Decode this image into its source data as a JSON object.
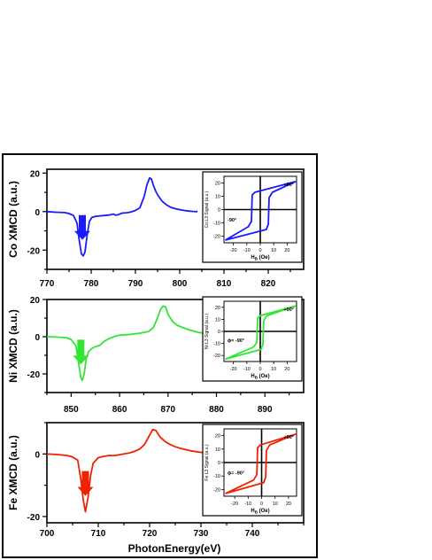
{
  "xlabel": "PhotonEnergy(eV)",
  "chart_data": [
    {
      "type": "line",
      "ylabel": "Co XMCD (a.u.)",
      "color": "#1a1aff",
      "xlim": [
        770,
        828
      ],
      "ylim": [
        -30,
        22
      ],
      "xticks": [
        770,
        780,
        790,
        800,
        810,
        820
      ],
      "yticks": [
        -20,
        0,
        20
      ],
      "series": [
        {
          "x": [
            770,
            772,
            774,
            775,
            776,
            776.8,
            777.3,
            777.8,
            778.2,
            778.6,
            779.1,
            779.6,
            780.2,
            781,
            782,
            783,
            784,
            785,
            785.6,
            786.2,
            787,
            788,
            789,
            790,
            791,
            792,
            792.6,
            793.2,
            793.6,
            794,
            794.6,
            795.2,
            796,
            797,
            798,
            799,
            800,
            801,
            802,
            803,
            804
          ],
          "y": [
            0,
            -0.3,
            -0.5,
            -1,
            -2,
            -6,
            -15,
            -22,
            -23,
            -21,
            -12,
            -5,
            -3,
            -2.5,
            -2.2,
            -2,
            -1.8,
            -1.3,
            -1.9,
            -1.5,
            -0.8,
            -0.6,
            -0.2,
            0.6,
            2,
            8,
            14,
            17.5,
            17,
            14,
            10.5,
            8,
            5.5,
            3.5,
            2.2,
            1.5,
            1,
            0.6,
            0.3,
            0.1,
            0
          ]
        }
      ],
      "arrow_x": 778,
      "inset": {
        "ylabel": "Co L3 Signal (a.u.)",
        "xlabel": "H",
        "xlabel_sub": "B",
        "xlabel_unit": "(Oe)",
        "xlim": [
          -27,
          27
        ],
        "ylim": [
          -25,
          25
        ],
        "xticks": [
          -20,
          -10,
          0,
          10,
          20
        ],
        "yticks": [
          -20,
          -10,
          0,
          10,
          20
        ],
        "label_pos": "+90°",
        "label_neg": "-90°",
        "coercive": 6,
        "sat": 19
      }
    },
    {
      "type": "line",
      "ylabel": "Ni XMCD (a.u.)",
      "color": "#33e633",
      "xlim": [
        845,
        898
      ],
      "ylim": [
        -30,
        20
      ],
      "xticks": [
        850,
        860,
        870,
        880,
        890
      ],
      "yticks": [
        -20,
        0,
        20
      ],
      "series": [
        {
          "x": [
            845,
            847,
            849,
            850,
            851,
            851.6,
            852,
            852.3,
            852.7,
            853.1,
            853.6,
            854.2,
            854.8,
            855.5,
            856,
            856.8,
            857.5,
            858,
            858.6,
            859.2,
            860,
            862,
            864,
            866,
            867,
            867.8,
            868.5,
            869,
            869.5,
            870,
            871,
            872,
            874,
            876,
            878,
            880
          ],
          "y": [
            0,
            -0.2,
            -0.5,
            -1.5,
            -5,
            -15,
            -22,
            -23.5,
            -20,
            -12,
            -8,
            -6.5,
            -5.5,
            -5,
            -4.5,
            -2.5,
            -1.5,
            -0.8,
            -0.3,
            0.4,
            0.8,
            1.2,
            1.8,
            2.8,
            5,
            10,
            15,
            16.5,
            16,
            12,
            8,
            6,
            4,
            2.5,
            1.5,
            1
          ]
        }
      ],
      "arrow_x": 852,
      "inset": {
        "ylabel": "Ni L3 Signal (a.u.)",
        "xlabel": "H",
        "xlabel_sub": "B",
        "xlabel_unit": "(Oe)",
        "xlim": [
          -27,
          27
        ],
        "ylim": [
          -25,
          25
        ],
        "xticks": [
          -20,
          -10,
          0,
          10,
          20
        ],
        "yticks": [
          -20,
          -10,
          0,
          10,
          20
        ],
        "label_pos": "+90°",
        "label_neg": "-90°",
        "phi": "ϕ",
        "coercive": 2,
        "sat": 19
      }
    },
    {
      "type": "line",
      "ylabel": "Fe XMCD (a.u.)",
      "color": "#ee2200",
      "xlim": [
        700,
        750
      ],
      "ylim": [
        -22,
        10
      ],
      "xticks": [
        700,
        710,
        720,
        730,
        740
      ],
      "yticks": [
        -20,
        0
      ],
      "series": [
        {
          "x": [
            700,
            702,
            704,
            705,
            706,
            706.6,
            707.1,
            707.5,
            708,
            708.5,
            709,
            710,
            711,
            712,
            713,
            714,
            715,
            716,
            717,
            718,
            719,
            720,
            720.6,
            721.2,
            722,
            723,
            724,
            725,
            726,
            727,
            728,
            730,
            732
          ],
          "y": [
            0,
            -0.2,
            -0.5,
            -1,
            -2,
            -8,
            -15,
            -18.5,
            -14,
            -7,
            -3,
            -1.2,
            -0.8,
            -0.5,
            -0.5,
            -0.3,
            0,
            0.3,
            0.8,
            1.5,
            3,
            6,
            7.8,
            7.5,
            5.5,
            4,
            3,
            2.3,
            1.8,
            1.4,
            1,
            0.5,
            0.2
          ]
        }
      ],
      "arrow_x": 707.5,
      "inset": {
        "ylabel": "Fe L3 Signal (a.u.)",
        "xlabel": "H",
        "xlabel_sub": "B",
        "xlabel_unit": "(Oe)",
        "xlim": [
          -28,
          26
        ],
        "ylim": [
          -25,
          25
        ],
        "xticks": [
          -20,
          -10,
          0,
          10,
          20
        ],
        "yticks": [
          -20,
          -10,
          0,
          10,
          20
        ],
        "label_pos": "+90°",
        "label_neg": "-90°",
        "phi": "ϕ",
        "coercive": 3,
        "sat": 19
      }
    }
  ]
}
